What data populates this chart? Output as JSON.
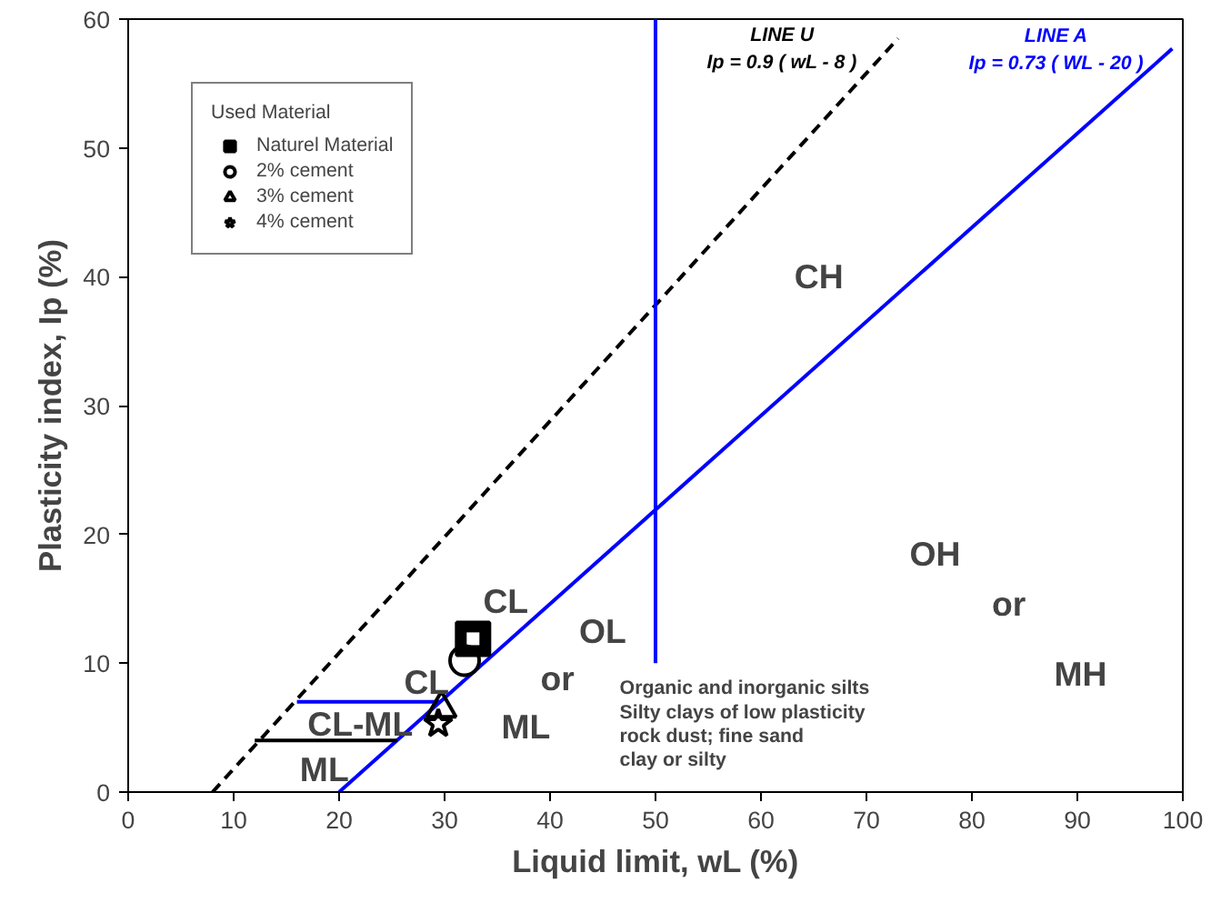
{
  "chart_data": {
    "type": "scatter",
    "xlabel": "Liquid limit, wL (%)",
    "ylabel": "Plasticity index, Ip (%)",
    "legend_title": "Used Material",
    "legend": "top left",
    "xlim": [
      0,
      100
    ],
    "ylim": [
      0,
      60
    ],
    "xticks": [
      0,
      10,
      20,
      30,
      40,
      50,
      60,
      70,
      80,
      90,
      100
    ],
    "yticks": [
      0,
      10,
      20,
      30,
      40,
      50,
      60
    ],
    "grid": false,
    "series": [
      {
        "name": "LINE U\nIp = 0.9 ( wL - 8 )",
        "type": "line",
        "line_style": "dashed",
        "color": "#000000",
        "x": [
          8,
          73
        ],
        "values": [
          0,
          58.5
        ]
      },
      {
        "name": "LINE A\nIp = 0.73 ( WL - 20 )",
        "type": "line",
        "line_style": "solid",
        "color": "#0000ff",
        "x": [
          20,
          99
        ],
        "values": [
          0,
          57.7
        ]
      },
      {
        "type": "line",
        "line_style": "solid",
        "color": "#0000ff",
        "x": [
          50,
          50
        ],
        "values": [
          10,
          60
        ]
      },
      {
        "type": "line",
        "line_style": "solid",
        "color": "#0000ff",
        "x": [
          16,
          29.6
        ],
        "values": [
          7,
          7
        ]
      },
      {
        "type": "line",
        "line_style": "solid",
        "color": "#000000",
        "x": [
          12,
          25.5
        ],
        "values": [
          4,
          4
        ]
      },
      {
        "name": "Naturel Material",
        "marker": "square",
        "color": "#000000",
        "x": [
          32.7
        ],
        "values": [
          11.9
        ]
      },
      {
        "name": "2% cement",
        "marker": "circle",
        "color": "#000000",
        "x": [
          31.9
        ],
        "values": [
          10.2
        ]
      },
      {
        "name": "3% cement",
        "marker": "triangle",
        "color": "#000000",
        "x": [
          29.7
        ],
        "values": [
          6.5
        ]
      },
      {
        "name": "4% cement",
        "marker": "star",
        "color": "#000000",
        "x": [
          29.4
        ],
        "values": [
          5.3
        ]
      }
    ],
    "annotations": [
      "CL",
      "CL",
      "CL-ML",
      "ML",
      "OL",
      "or",
      "ML",
      "CH",
      "OH",
      "or",
      "MH",
      "Organic and inorganic silts\n  Silty clays of low plasticity\nrock dust; fine sand\nclay or silty"
    ]
  }
}
